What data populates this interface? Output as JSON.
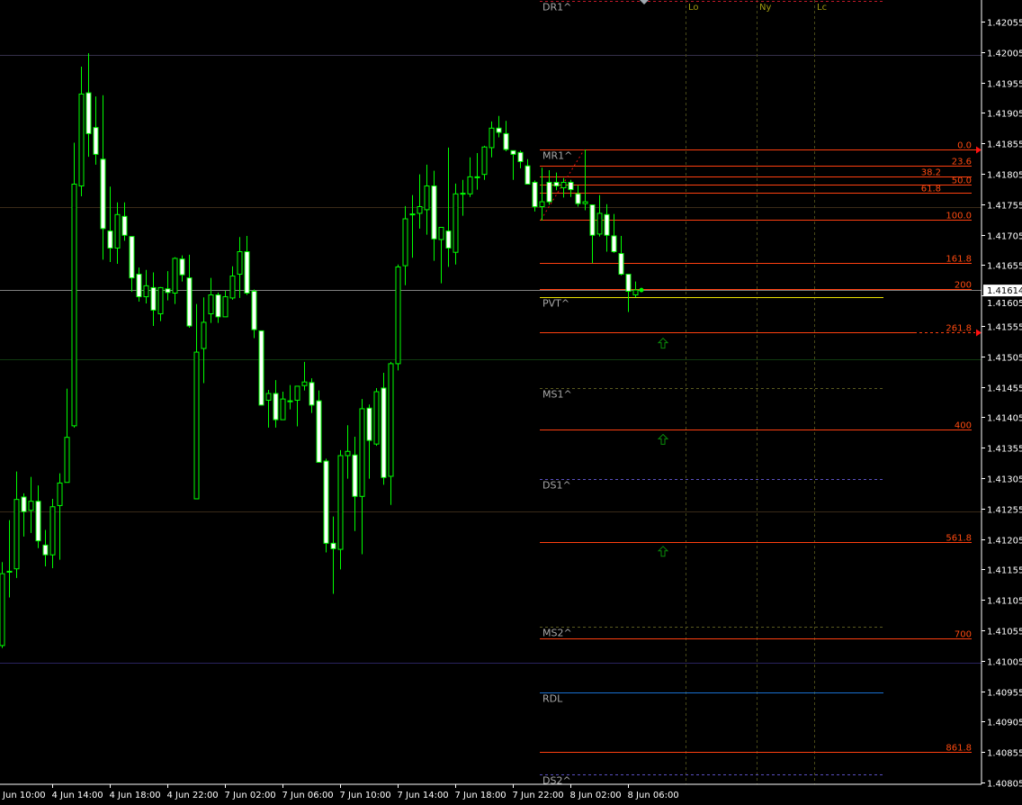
{
  "chart_data": {
    "type": "candlestick",
    "colors": {
      "background": "#000000",
      "candle_outline": "#00ff00",
      "bear_body": "#ffffff",
      "bull_body": "#000000",
      "axis": "#ffffff",
      "fib": "#ff4010",
      "pivot_label": "#a8a8a8",
      "session": "#a09a10",
      "arrow": "#0a8a0a"
    },
    "y_range": [
      1.4079,
      1.4209
    ],
    "y_ticks": [
      "1.42055",
      "1.42005",
      "1.41955",
      "1.41905",
      "1.41855",
      "1.41805",
      "1.41755",
      "1.41705",
      "1.41655",
      "1.41605",
      "1.41555",
      "1.41505",
      "1.41455",
      "1.41405",
      "1.41355",
      "1.41305",
      "1.41255",
      "1.41205",
      "1.41155",
      "1.41105",
      "1.41055",
      "1.41005",
      "1.40955",
      "1.40905",
      "1.40855",
      "1.40805"
    ],
    "x_ticks": [
      "4 Jun 10:00",
      "4 Jun 14:00",
      "4 Jun 18:00",
      "4 Jun 22:00",
      "7 Jun 02:00",
      "7 Jun 06:00",
      "7 Jun 10:00",
      "7 Jun 14:00",
      "7 Jun 18:00",
      "7 Jun 22:00",
      "8 Jun 02:00",
      "8 Jun 06:00"
    ],
    "current_price": "1.41614",
    "candles_ohlc": [
      [
        1.4103,
        1.41167,
        1.41026,
        1.41148
      ],
      [
        1.41151,
        1.41236,
        1.41109,
        1.41152
      ],
      [
        1.41156,
        1.41316,
        1.41141,
        1.4127
      ],
      [
        1.41274,
        1.4128,
        1.41209,
        1.4125
      ],
      [
        1.41252,
        1.41307,
        1.41215,
        1.41267
      ],
      [
        1.41267,
        1.41293,
        1.4119,
        1.41202
      ],
      [
        1.41195,
        1.4122,
        1.4116,
        1.41179
      ],
      [
        1.41179,
        1.41271,
        1.41157,
        1.41258
      ],
      [
        1.4126,
        1.41313,
        1.41171,
        1.41297
      ],
      [
        1.41298,
        1.41452,
        1.41298,
        1.41372
      ],
      [
        1.41391,
        1.41856,
        1.41388,
        1.41788
      ],
      [
        1.41785,
        1.41981,
        1.41768,
        1.41936
      ],
      [
        1.41938,
        1.42003,
        1.41833,
        1.41871
      ],
      [
        1.41881,
        1.41932,
        1.4182,
        1.41837
      ],
      [
        1.41829,
        1.41934,
        1.41664,
        1.41715
      ],
      [
        1.41711,
        1.41784,
        1.4166,
        1.41683
      ],
      [
        1.41683,
        1.41758,
        1.41657,
        1.41738
      ],
      [
        1.41735,
        1.41758,
        1.41695,
        1.41704
      ],
      [
        1.41702,
        1.41702,
        1.41611,
        1.41634
      ],
      [
        1.4164,
        1.41651,
        1.41595,
        1.41603
      ],
      [
        1.41603,
        1.41647,
        1.41592,
        1.41621
      ],
      [
        1.41618,
        1.41643,
        1.41555,
        1.41581
      ],
      [
        1.41575,
        1.41619,
        1.41563,
        1.41618
      ],
      [
        1.41616,
        1.41645,
        1.41597,
        1.4161
      ],
      [
        1.41609,
        1.41668,
        1.41591,
        1.41666
      ],
      [
        1.41665,
        1.41671,
        1.41628,
        1.41639
      ],
      [
        1.41634,
        1.41672,
        1.41552,
        1.41555
      ],
      [
        1.41271,
        1.41591,
        1.41271,
        1.41512
      ],
      [
        1.41518,
        1.41602,
        1.41461,
        1.41561
      ],
      [
        1.41575,
        1.41634,
        1.4156,
        1.41606
      ],
      [
        1.41606,
        1.4161,
        1.4156,
        1.4157
      ],
      [
        1.4157,
        1.41613,
        1.4157,
        1.41603
      ],
      [
        1.41601,
        1.41653,
        1.41598,
        1.41637
      ],
      [
        1.4164,
        1.41701,
        1.41601,
        1.41677
      ],
      [
        1.41677,
        1.41703,
        1.41606,
        1.41609
      ],
      [
        1.41612,
        1.41615,
        1.41535,
        1.41549
      ],
      [
        1.41547,
        1.41547,
        1.41425,
        1.41425
      ],
      [
        1.41433,
        1.4145,
        1.41388,
        1.41444
      ],
      [
        1.41444,
        1.41466,
        1.41388,
        1.41401
      ],
      [
        1.41401,
        1.41447,
        1.41401,
        1.41435
      ],
      [
        1.41432,
        1.41458,
        1.41418,
        1.41432
      ],
      [
        1.41433,
        1.41456,
        1.4139,
        1.41456
      ],
      [
        1.41457,
        1.41496,
        1.41449,
        1.41463
      ],
      [
        1.41462,
        1.41469,
        1.41412,
        1.41425
      ],
      [
        1.41432,
        1.41449,
        1.41331,
        1.41331
      ],
      [
        1.41333,
        1.41337,
        1.41183,
        1.41198
      ],
      [
        1.41198,
        1.41242,
        1.41115,
        1.41189
      ],
      [
        1.41188,
        1.41351,
        1.41155,
        1.41342
      ],
      [
        1.41342,
        1.41392,
        1.41304,
        1.41349
      ],
      [
        1.41343,
        1.41373,
        1.41218,
        1.41275
      ],
      [
        1.41275,
        1.41435,
        1.4118,
        1.41419
      ],
      [
        1.4142,
        1.41426,
        1.41304,
        1.41367
      ],
      [
        1.41361,
        1.41453,
        1.41358,
        1.41447
      ],
      [
        1.41453,
        1.41478,
        1.41294,
        1.41306
      ],
      [
        1.41308,
        1.41496,
        1.41261,
        1.41493
      ],
      [
        1.41493,
        1.41656,
        1.41482,
        1.41652
      ],
      [
        1.41654,
        1.41752,
        1.41622,
        1.41731
      ],
      [
        1.41738,
        1.4177,
        1.41667,
        1.41739
      ],
      [
        1.4174,
        1.41804,
        1.41715,
        1.41751
      ],
      [
        1.41746,
        1.4182,
        1.41705,
        1.41785
      ],
      [
        1.41785,
        1.4181,
        1.41662,
        1.41698
      ],
      [
        1.41697,
        1.41717,
        1.41625,
        1.41717
      ],
      [
        1.41711,
        1.41848,
        1.41652,
        1.41683
      ],
      [
        1.41676,
        1.41789,
        1.41656,
        1.41772
      ],
      [
        1.41773,
        1.41795,
        1.41736,
        1.41773
      ],
      [
        1.41772,
        1.41832,
        1.41767,
        1.418
      ],
      [
        1.418,
        1.41839,
        1.41779,
        1.418
      ],
      [
        1.41804,
        1.41851,
        1.41795,
        1.41849
      ],
      [
        1.41848,
        1.41891,
        1.41832,
        1.4188
      ],
      [
        1.4188,
        1.419,
        1.41865,
        1.41873
      ],
      [
        1.41871,
        1.41892,
        1.41842,
        1.41845
      ],
      [
        1.41843,
        1.41843,
        1.41795,
        1.41837
      ],
      [
        1.4184,
        1.41843,
        1.41814,
        1.41825
      ],
      [
        1.41818,
        1.41829,
        1.41788,
        1.41788
      ],
      [
        1.41791,
        1.41794,
        1.41743,
        1.41751
      ],
      [
        1.41751,
        1.41815,
        1.41728,
        1.41759
      ],
      [
        1.41791,
        1.41811,
        1.41754,
        1.41759
      ],
      [
        1.41791,
        1.41807,
        1.41778,
        1.41785
      ],
      [
        1.41782,
        1.41798,
        1.41766,
        1.41791
      ],
      [
        1.41791,
        1.41795,
        1.41767,
        1.41779
      ],
      [
        1.41772,
        1.41786,
        1.41751,
        1.41756
      ],
      [
        1.41756,
        1.41845,
        1.41745,
        1.41759
      ],
      [
        1.41754,
        1.41754,
        1.41658,
        1.41704
      ],
      [
        1.41706,
        1.4177,
        1.41702,
        1.4174
      ],
      [
        1.41738,
        1.41755,
        1.41677,
        1.41704
      ],
      [
        1.41703,
        1.41739,
        1.41675,
        1.41677
      ],
      [
        1.41674,
        1.41703,
        1.41638,
        1.4164
      ],
      [
        1.4164,
        1.4164,
        1.41578,
        1.41612
      ],
      [
        1.41606,
        1.41628,
        1.41602,
        1.41614
      ]
    ],
    "background_lines": [
      {
        "price": 1.42,
        "color": "#35304a"
      },
      {
        "price": 1.4175,
        "color": "#3a2a18"
      },
      {
        "price": 1.41614,
        "color": "#808080"
      },
      {
        "price": 1.415,
        "color": "#0f3a0f"
      },
      {
        "price": 1.4125,
        "color": "#3a2a18"
      },
      {
        "price": 1.41002,
        "color": "#2a2460"
      }
    ],
    "pivot_levels": [
      {
        "label": "DR1^",
        "price": 1.42089,
        "color": "#c0182a",
        "dash": true
      },
      {
        "label": "MR1^",
        "price": 1.41845,
        "color": "#ff4010",
        "dash": false
      },
      {
        "label": "PVT^",
        "price": 1.41602,
        "color": "#e8e000",
        "dash": false
      },
      {
        "label": "MS1^",
        "price": 1.41453,
        "color": "#5a5a20",
        "dash": true
      },
      {
        "label": "DS1^",
        "price": 1.41304,
        "color": "#5a50c0",
        "dash": true
      },
      {
        "label": "MS2^",
        "price": 1.41061,
        "color": "#5a5a20",
        "dash": true
      },
      {
        "label": "RDL",
        "price": 1.40953,
        "color": "#1a70d0",
        "dash": false
      },
      {
        "label": "DS2^",
        "price": 1.40819,
        "color": "#5a50c0",
        "dash": true
      }
    ],
    "fib_levels": [
      {
        "label": "0.0",
        "price": 1.41845,
        "extended": true
      },
      {
        "label": "23.6",
        "price": 1.41818
      },
      {
        "label": "38.2",
        "price": 1.41801
      },
      {
        "label": "50.0",
        "price": 1.41787
      },
      {
        "label": "61.8",
        "price": 1.41774
      },
      {
        "label": "100.0",
        "price": 1.4173
      },
      {
        "label": "161.8",
        "price": 1.41659
      },
      {
        "label": "200",
        "price": 1.41615
      },
      {
        "label": "261.8",
        "price": 1.41545,
        "extended": true
      },
      {
        "label": "400",
        "price": 1.41385
      },
      {
        "label": "561.8",
        "price": 1.412
      },
      {
        "label": "700",
        "price": 1.41042
      },
      {
        "label": "861.8",
        "price": 1.40856
      }
    ],
    "fib_anchor": {
      "from_price": 1.4173,
      "to_price": 1.41845
    },
    "signal_arrows": [
      {
        "icon": "up-arrow",
        "price": 1.41526
      },
      {
        "icon": "up-arrow",
        "price": 1.41368
      },
      {
        "icon": "up-arrow",
        "price": 1.41184
      }
    ],
    "session_markers": [
      "Lo",
      "Ny",
      "Lc"
    ]
  }
}
